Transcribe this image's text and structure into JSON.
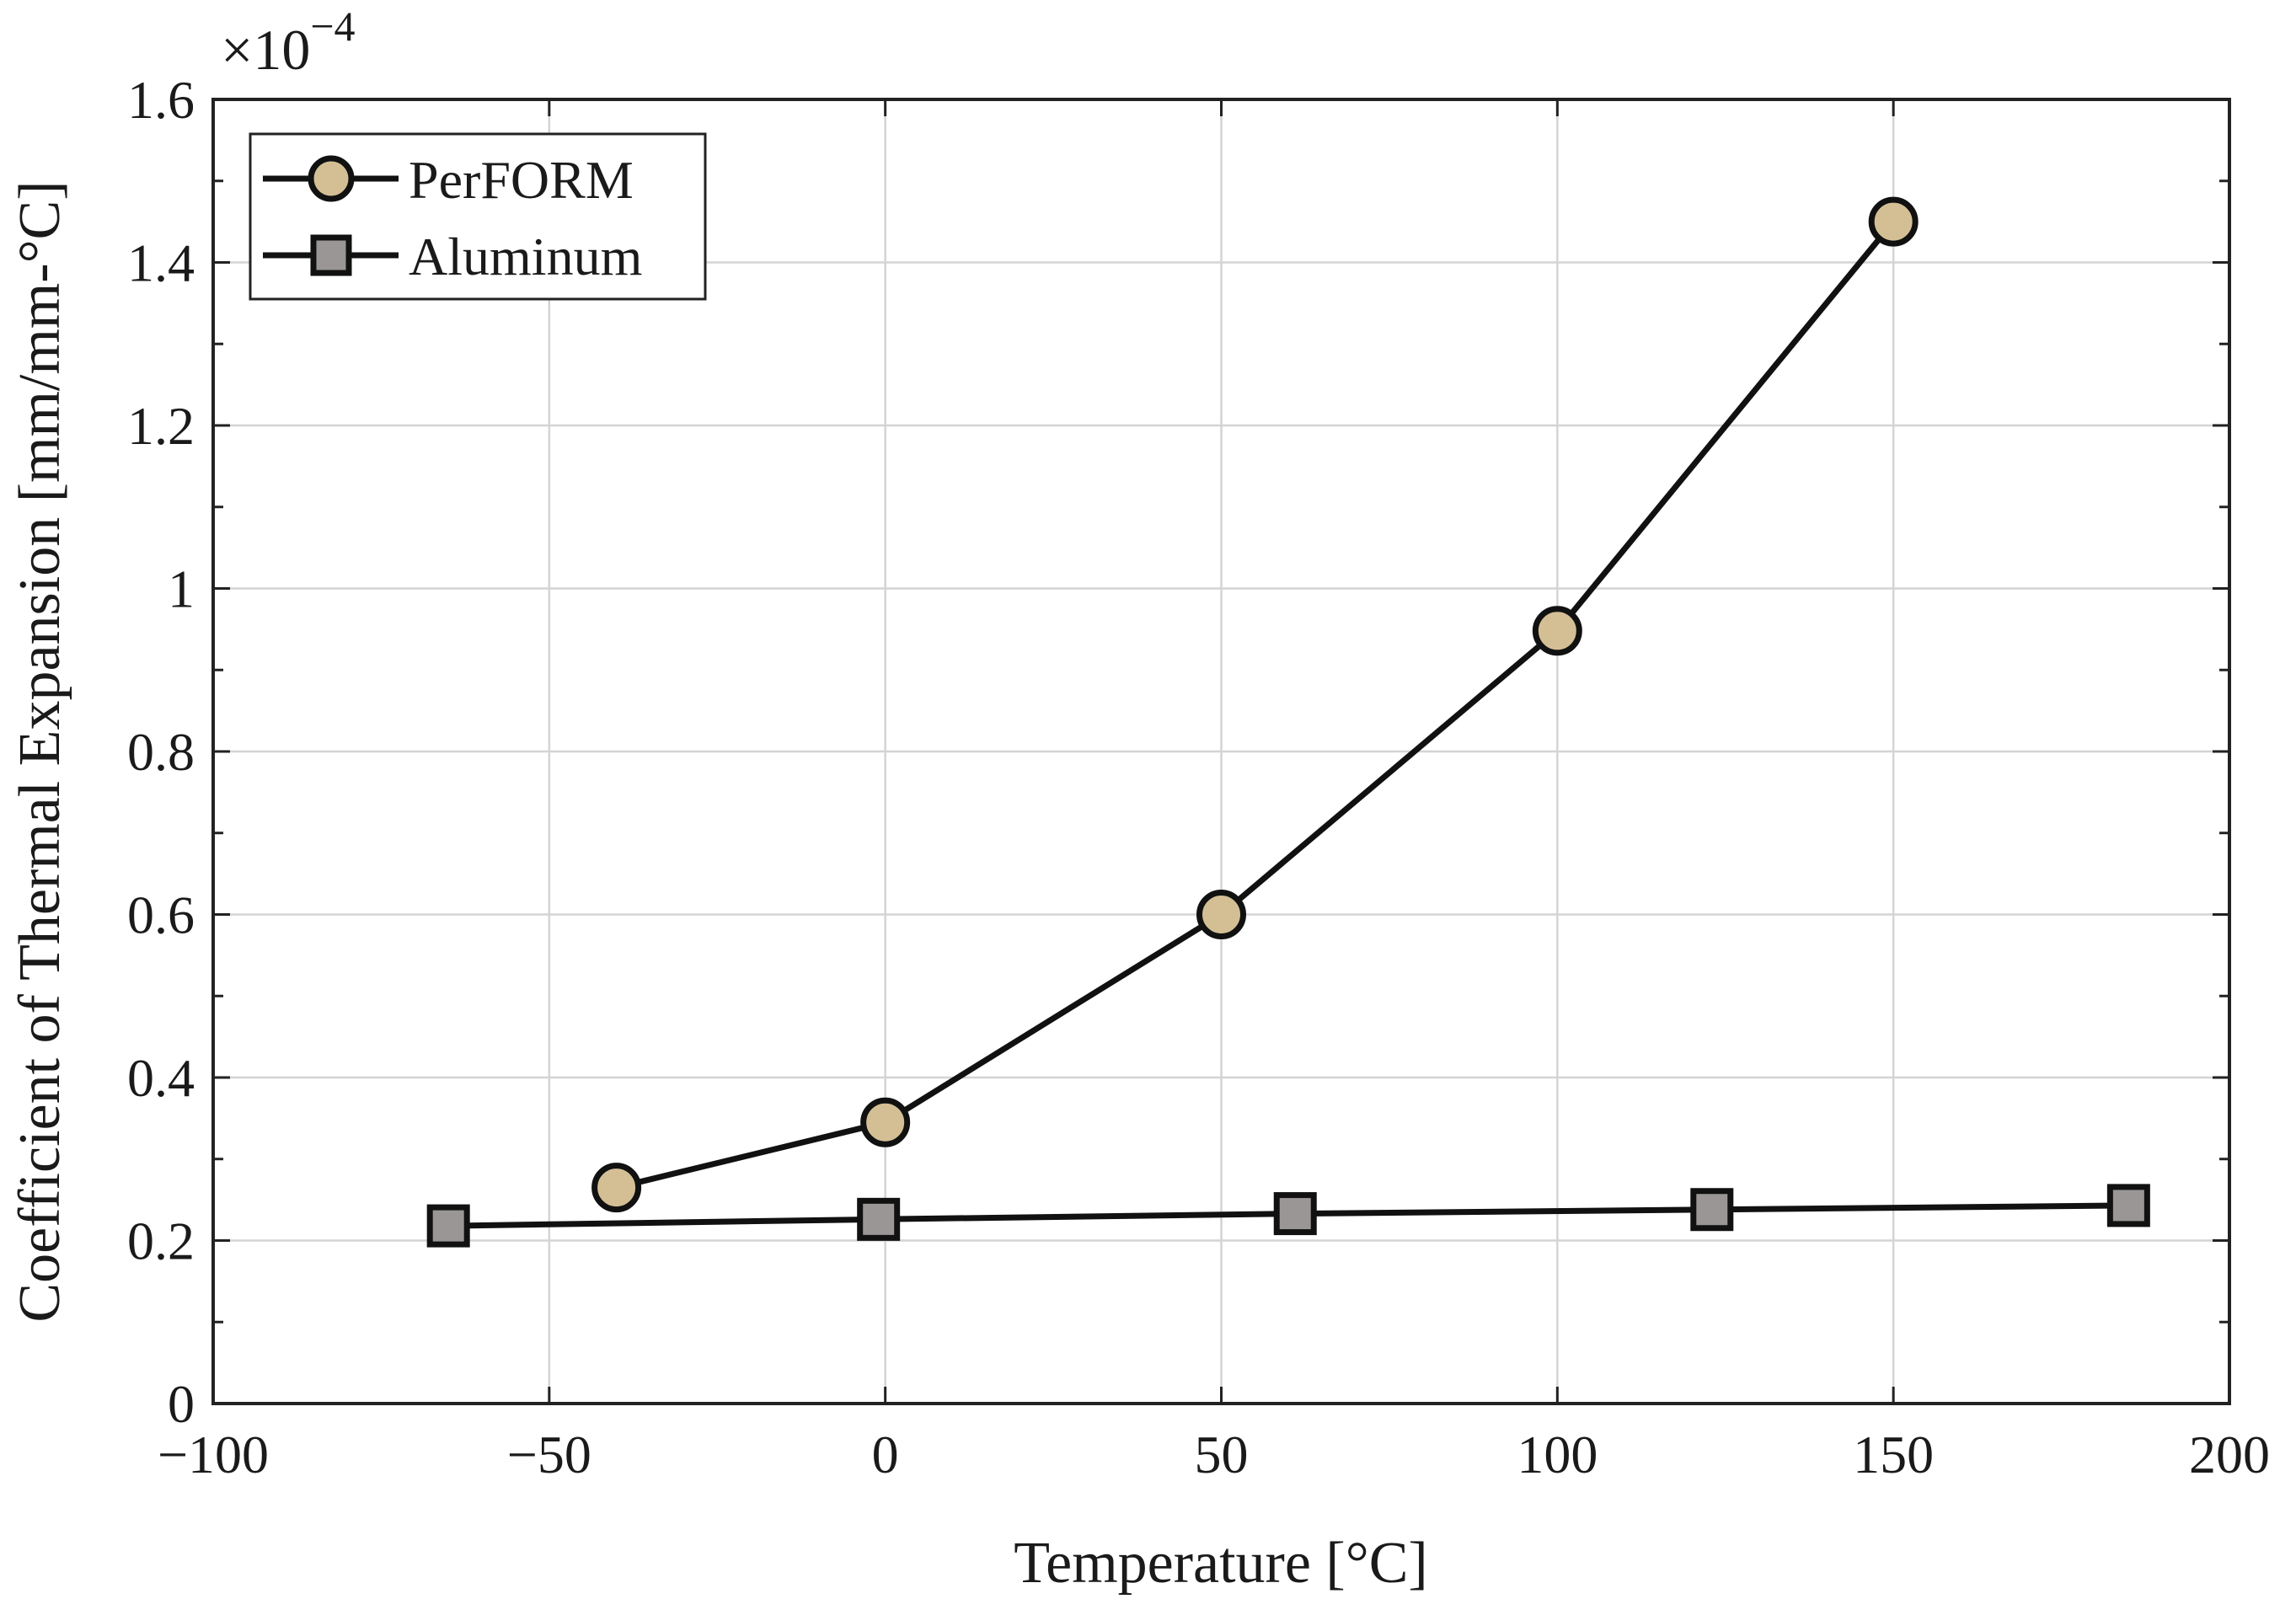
{
  "chart_data": {
    "type": "line",
    "xlabel": "Temperature [°C]",
    "ylabel": "Coefficient of Thermal Expansion [mm/mm-°C]",
    "y_exponent_prefix": "×10",
    "y_exponent_power": "−4",
    "xlim": [
      -100,
      200
    ],
    "ylim": [
      0,
      1.6
    ],
    "x_ticks": [
      -100,
      -50,
      0,
      50,
      100,
      150,
      200
    ],
    "x_tick_labels": [
      "−100",
      "−50",
      "0",
      "50",
      "100",
      "150",
      "200"
    ],
    "y_ticks": [
      0,
      0.2,
      0.4,
      0.6,
      0.8,
      1.0,
      1.2,
      1.4,
      1.6
    ],
    "y_tick_labels": [
      "0",
      "0.2",
      "0.4",
      "0.6",
      "0.8",
      "1",
      "1.2",
      "1.4",
      "1.6"
    ],
    "grid": true,
    "legend_position": "top-left",
    "series": [
      {
        "name": "PerFORM",
        "marker": "circle",
        "color": "#d4bf95",
        "x": [
          -40,
          0,
          50,
          100,
          150
        ],
        "y": [
          0.265,
          0.345,
          0.6,
          0.948,
          1.45
        ]
      },
      {
        "name": "Aluminum",
        "marker": "square",
        "color": "#9a9696",
        "x": [
          -65,
          -1,
          61,
          123,
          185
        ],
        "y": [
          0.218,
          0.226,
          0.233,
          0.238,
          0.243
        ]
      }
    ]
  }
}
